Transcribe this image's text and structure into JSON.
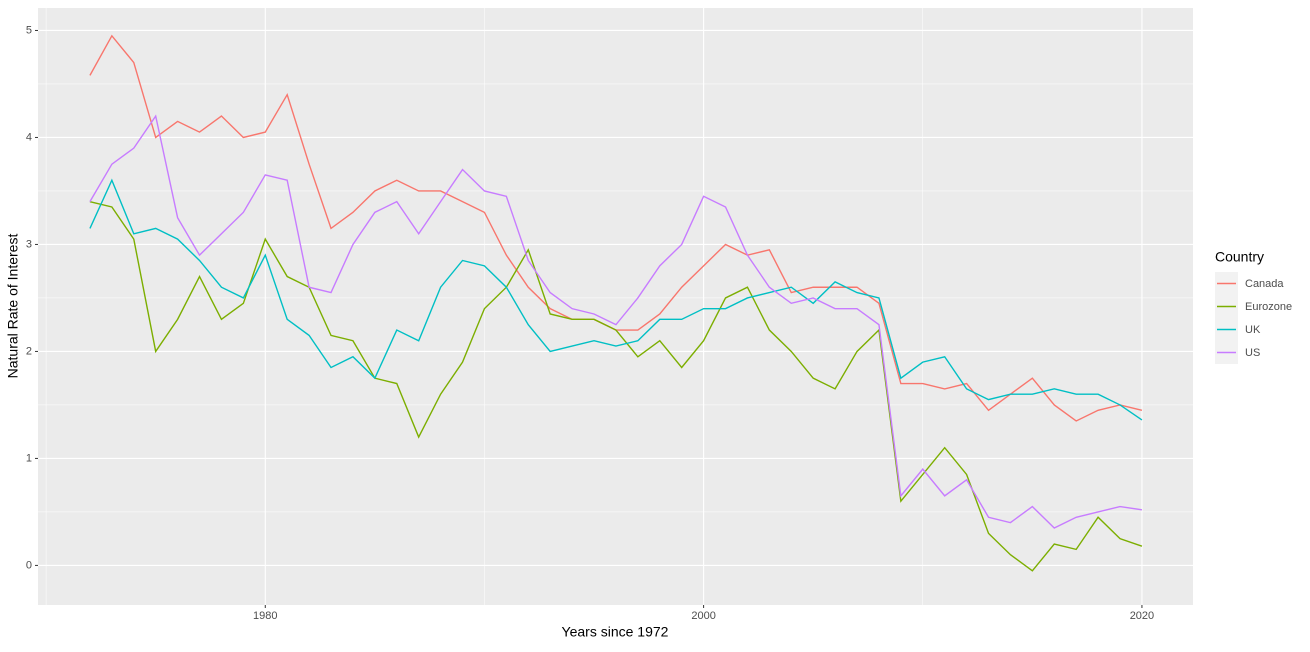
{
  "chart_data": {
    "type": "line",
    "x_label": "Years since 1972",
    "y_label": "Natural Rate of Interest",
    "legend_title": "Country",
    "legend": "right",
    "grid": true,
    "x": [
      1972,
      1973,
      1974,
      1975,
      1976,
      1977,
      1978,
      1979,
      1980,
      1981,
      1982,
      1983,
      1984,
      1985,
      1986,
      1987,
      1988,
      1989,
      1990,
      1991,
      1992,
      1993,
      1994,
      1995,
      1996,
      1997,
      1998,
      1999,
      2000,
      2001,
      2002,
      2003,
      2004,
      2005,
      2006,
      2007,
      2008,
      2009,
      2010,
      2011,
      2012,
      2013,
      2014,
      2015,
      2016,
      2017,
      2018,
      2019,
      2020
    ],
    "xlim": [
      1969.63,
      2022.33
    ],
    "xticks": [
      1980,
      2000,
      2020
    ],
    "ylim": [
      -0.37,
      5.21
    ],
    "yticks": [
      0,
      1,
      2,
      3,
      4,
      5
    ],
    "series": [
      {
        "name": "Canada",
        "color": "#F8766D",
        "values": [
          4.58,
          4.95,
          4.7,
          4.0,
          4.15,
          4.05,
          4.2,
          4.0,
          4.05,
          4.4,
          3.75,
          3.15,
          3.3,
          3.5,
          3.6,
          3.5,
          3.5,
          3.4,
          3.3,
          2.9,
          2.6,
          2.4,
          2.3,
          2.3,
          2.2,
          2.2,
          2.35,
          2.6,
          2.8,
          3.0,
          2.9,
          2.95,
          2.55,
          2.6,
          2.6,
          2.6,
          2.45,
          1.7,
          1.7,
          1.65,
          1.7,
          1.45,
          1.6,
          1.75,
          1.5,
          1.35,
          1.45,
          1.5,
          1.45
        ]
      },
      {
        "name": "Eurozone",
        "color": "#7CAE00",
        "values": [
          3.4,
          3.35,
          3.05,
          2.0,
          2.3,
          2.7,
          2.3,
          2.45,
          3.05,
          2.7,
          2.6,
          2.15,
          2.1,
          1.75,
          1.7,
          1.2,
          1.6,
          1.9,
          2.4,
          2.6,
          2.95,
          2.35,
          2.3,
          2.3,
          2.2,
          1.95,
          2.1,
          1.85,
          2.1,
          2.5,
          2.6,
          2.2,
          2.0,
          1.75,
          1.65,
          2.0,
          2.2,
          0.6,
          0.85,
          1.1,
          0.85,
          0.3,
          0.1,
          -0.05,
          0.2,
          0.15,
          0.45,
          0.25,
          0.18
        ]
      },
      {
        "name": "UK",
        "color": "#00BFC4",
        "values": [
          3.15,
          3.6,
          3.1,
          3.15,
          3.05,
          2.85,
          2.6,
          2.5,
          2.9,
          2.3,
          2.15,
          1.85,
          1.95,
          1.75,
          2.2,
          2.1,
          2.6,
          2.85,
          2.8,
          2.6,
          2.25,
          2.0,
          2.05,
          2.1,
          2.05,
          2.1,
          2.3,
          2.3,
          2.4,
          2.4,
          2.5,
          2.55,
          2.6,
          2.45,
          2.65,
          2.55,
          2.5,
          1.75,
          1.9,
          1.95,
          1.65,
          1.55,
          1.6,
          1.6,
          1.65,
          1.6,
          1.6,
          1.5,
          1.36
        ]
      },
      {
        "name": "US",
        "color": "#C77CFF",
        "values": [
          3.4,
          3.75,
          3.9,
          4.2,
          3.25,
          2.9,
          3.1,
          3.3,
          3.65,
          3.6,
          2.6,
          2.55,
          3.0,
          3.3,
          3.4,
          3.1,
          3.4,
          3.7,
          3.5,
          3.45,
          2.85,
          2.55,
          2.4,
          2.35,
          2.25,
          2.5,
          2.8,
          3.0,
          3.45,
          3.35,
          2.9,
          2.6,
          2.45,
          2.5,
          2.4,
          2.4,
          2.25,
          0.65,
          0.9,
          0.65,
          0.8,
          0.45,
          0.4,
          0.55,
          0.35,
          0.45,
          0.5,
          0.55,
          0.52
        ]
      }
    ]
  }
}
